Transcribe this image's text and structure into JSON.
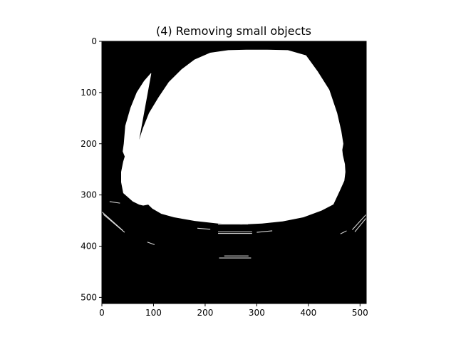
{
  "chart_data": {
    "type": "heatmap",
    "title": "(4) Removing small objects",
    "image_size": [
      512,
      512
    ],
    "colormap": "gray",
    "background_color": "#000000",
    "foreground_color": "#ffffff",
    "xlim": [
      0,
      512
    ],
    "ylim": [
      512,
      0
    ],
    "x_ticks": [
      0,
      100,
      200,
      300,
      400,
      500
    ],
    "y_ticks": [
      0,
      100,
      200,
      300,
      400,
      500
    ],
    "grid": false,
    "mask_outline": [
      [
        65,
        228
      ],
      [
        72,
        195
      ],
      [
        80,
        170
      ],
      [
        92,
        140
      ],
      [
        110,
        110
      ],
      [
        130,
        80
      ],
      [
        155,
        55
      ],
      [
        180,
        36
      ],
      [
        210,
        23
      ],
      [
        245,
        18
      ],
      [
        280,
        17
      ],
      [
        320,
        17
      ],
      [
        360,
        18
      ],
      [
        395,
        28
      ],
      [
        418,
        60
      ],
      [
        440,
        95
      ],
      [
        455,
        140
      ],
      [
        463,
        175
      ],
      [
        467,
        200
      ],
      [
        465,
        212
      ],
      [
        466,
        222
      ],
      [
        470,
        240
      ],
      [
        471,
        255
      ],
      [
        469,
        272
      ],
      [
        460,
        292
      ],
      [
        448,
        318
      ],
      [
        425,
        330
      ],
      [
        390,
        343
      ],
      [
        350,
        351
      ],
      [
        310,
        355
      ],
      [
        270,
        357
      ],
      [
        225,
        355
      ],
      [
        180,
        350
      ],
      [
        140,
        343
      ],
      [
        115,
        336
      ],
      [
        98,
        326
      ],
      [
        90,
        318
      ],
      [
        80,
        320
      ],
      [
        72,
        318
      ],
      [
        60,
        312
      ],
      [
        42,
        296
      ],
      [
        38,
        275
      ],
      [
        38,
        255
      ],
      [
        42,
        235
      ],
      [
        45,
        225
      ],
      [
        41,
        215
      ],
      [
        43,
        200
      ],
      [
        46,
        165
      ],
      [
        56,
        130
      ],
      [
        68,
        100
      ],
      [
        82,
        78
      ],
      [
        95,
        63
      ]
    ],
    "edge_segments": [
      [
        [
          0,
          333
        ],
        [
          40,
          369
        ]
      ],
      [
        [
          3,
          338
        ],
        [
          44,
          373
        ]
      ],
      [
        [
          15,
          313
        ],
        [
          35,
          316
        ]
      ],
      [
        [
          88,
          392
        ],
        [
          102,
          397
        ]
      ],
      [
        [
          185,
          365
        ],
        [
          210,
          367
        ]
      ],
      [
        [
          225,
          357
        ],
        [
          283,
          357
        ]
      ],
      [
        [
          225,
          372
        ],
        [
          291,
          372
        ]
      ],
      [
        [
          225,
          375
        ],
        [
          291,
          375
        ]
      ],
      [
        [
          300,
          373
        ],
        [
          330,
          370
        ]
      ],
      [
        [
          237,
          419
        ],
        [
          284,
          419
        ]
      ],
      [
        [
          227,
          423
        ],
        [
          289,
          423
        ]
      ],
      [
        [
          462,
          376
        ],
        [
          474,
          370
        ]
      ],
      [
        [
          485,
          368
        ],
        [
          512,
          338
        ]
      ],
      [
        [
          490,
          372
        ],
        [
          512,
          345
        ]
      ]
    ]
  }
}
